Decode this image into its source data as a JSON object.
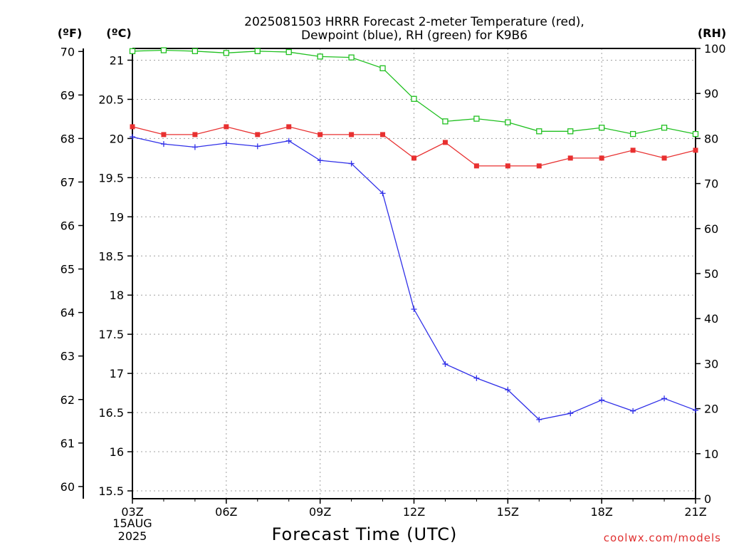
{
  "chart_data": {
    "type": "line",
    "title_line1": "2025081503 HRRR Forecast 2-meter Temperature (red),",
    "title_line2": "Dewpoint (blue), RH (green) for K9B6",
    "xlabel": "Forecast Time (UTC)",
    "credit": "coolwx.com/models",
    "axis_units": {
      "fahrenheit": "(ºF)",
      "celsius": "(ºC)",
      "rh": "(RH)"
    },
    "x_date_labels": [
      "15AUG",
      "2025"
    ],
    "x_ticks": [
      {
        "hour": 3,
        "label": "03Z"
      },
      {
        "hour": 6,
        "label": "06Z"
      },
      {
        "hour": 9,
        "label": "09Z"
      },
      {
        "hour": 12,
        "label": "12Z"
      },
      {
        "hour": 15,
        "label": "15Z"
      },
      {
        "hour": 18,
        "label": "18Z"
      },
      {
        "hour": 21,
        "label": "21Z"
      }
    ],
    "x_range": [
      3,
      21
    ],
    "y_celsius_range": [
      15.4,
      21.15
    ],
    "y_celsius_ticks": [
      "15.5",
      "16",
      "16.5",
      "17",
      "17.5",
      "18",
      "18.5",
      "19",
      "19.5",
      "20",
      "20.5",
      "21"
    ],
    "y_fahrenheit_ticks": [
      "60",
      "61",
      "62",
      "63",
      "64",
      "65",
      "66",
      "67",
      "68",
      "69",
      "70"
    ],
    "y_rh_range": [
      0,
      100
    ],
    "y_rh_ticks": [
      "0",
      "10",
      "20",
      "30",
      "40",
      "50",
      "60",
      "70",
      "80",
      "90",
      "100"
    ],
    "grid": true,
    "x_hours": [
      3,
      4,
      5,
      6,
      7,
      8,
      9,
      10,
      11,
      12,
      13,
      14,
      15,
      16,
      17,
      18,
      19,
      20,
      21
    ],
    "series": [
      {
        "name": "Temperature",
        "axis": "celsius",
        "color": "#e83030",
        "marker": "filled-square",
        "values": [
          20.15,
          20.05,
          20.05,
          20.15,
          20.05,
          20.15,
          20.05,
          20.05,
          20.05,
          19.75,
          19.95,
          19.65,
          19.65,
          19.65,
          19.75,
          19.75,
          19.85,
          19.75,
          19.85
        ]
      },
      {
        "name": "Dewpoint",
        "axis": "celsius",
        "color": "#3030e8",
        "marker": "plus",
        "values": [
          20.02,
          19.93,
          19.89,
          19.94,
          19.9,
          19.97,
          19.72,
          19.68,
          19.3,
          17.82,
          17.12,
          16.94,
          16.79,
          16.41,
          16.49,
          16.66,
          16.52,
          16.68,
          16.53
        ]
      },
      {
        "name": "RH",
        "axis": "rh",
        "color": "#20c020",
        "marker": "open-square",
        "values": [
          99.4,
          99.6,
          99.4,
          99.0,
          99.4,
          99.2,
          98.2,
          98.0,
          95.6,
          88.8,
          83.8,
          84.4,
          83.6,
          81.6,
          81.6,
          82.4,
          81.0,
          82.4,
          81.0
        ]
      }
    ]
  }
}
